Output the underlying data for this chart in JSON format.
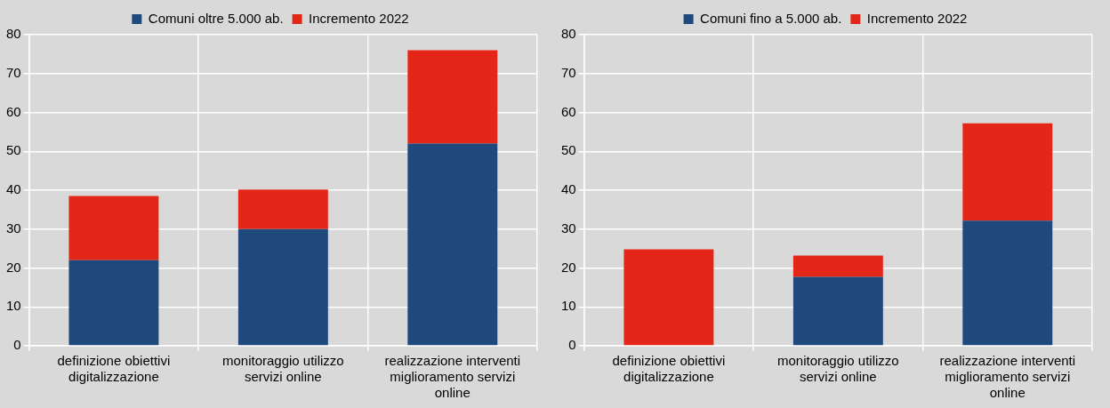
{
  "chart_data": [
    {
      "type": "bar",
      "stacked": true,
      "categories": [
        "definizione obiettivi digitalizzazione",
        "monitoraggio utilizzo servizi online",
        "realizzazione interventi miglioramento servizi online"
      ],
      "series": [
        {
          "name": "Comuni oltre 5.000 ab.",
          "color": "#1f497d",
          "values": [
            22,
            30,
            52
          ]
        },
        {
          "name": "Incremento 2022",
          "color": "#e32618",
          "values": [
            16.5,
            10.2,
            24
          ]
        }
      ],
      "ylim": [
        0,
        80
      ],
      "yticks": [
        0,
        10,
        20,
        30,
        40,
        50,
        60,
        70,
        80
      ],
      "grid": true,
      "legend": "top"
    },
    {
      "type": "bar",
      "stacked": true,
      "categories": [
        "definizione obiettivi digitalizzazione",
        "monitoraggio utilizzo servizi online",
        "realizzazione interventi miglioramento servizi online"
      ],
      "series": [
        {
          "name": "Comuni fino a 5.000 ab.",
          "color": "#1f497d",
          "values": [
            0,
            17.7,
            32.2
          ]
        },
        {
          "name": "Incremento 2022",
          "color": "#e32618",
          "values": [
            24.8,
            5.5,
            25
          ]
        }
      ],
      "ylim": [
        0,
        80
      ],
      "yticks": [
        0,
        10,
        20,
        30,
        40,
        50,
        60,
        70,
        80
      ],
      "grid": true,
      "legend": "top"
    }
  ]
}
